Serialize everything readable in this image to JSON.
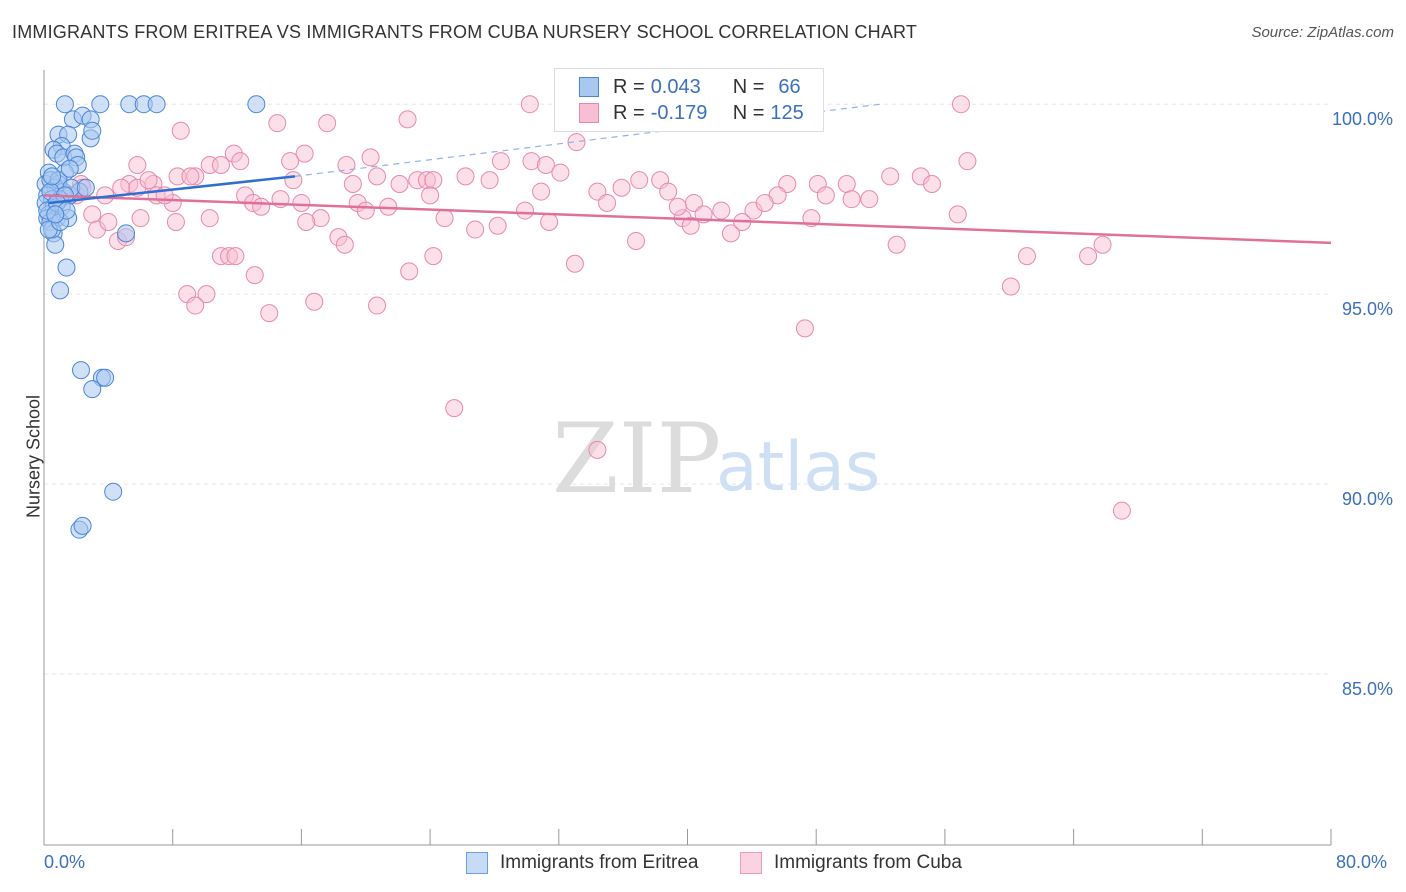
{
  "title": "IMMIGRANTS FROM ERITREA VS IMMIGRANTS FROM CUBA NURSERY SCHOOL CORRELATION CHART",
  "source": "Source: ZipAtlas.com",
  "watermark": {
    "zip": "ZIP",
    "atlas": "atlas"
  },
  "legend_top": {
    "eritrea": {
      "r_label": "R =",
      "r_value": "0.043",
      "n_label": "N =",
      "n_value": "66"
    },
    "cuba": {
      "r_label": "R =",
      "r_value": "-0.179",
      "n_label": "N =",
      "n_value": "125"
    }
  },
  "legend_bottom": {
    "eritrea": "Immigrants from Eritrea",
    "cuba": "Immigrants from Cuba"
  },
  "colors": {
    "eritrea_fill": "#a9c8f0",
    "eritrea_stroke": "#4a86d8",
    "eritrea_line": "#2f6fd0",
    "cuba_fill": "#f7bfd3",
    "cuba_stroke": "#e889ab",
    "cuba_line": "#e0709a",
    "tick_label": "#3a6fc4",
    "grid": "#e6e6e6"
  },
  "chart_data": {
    "type": "scatter",
    "title": "IMMIGRANTS FROM ERITREA VS IMMIGRANTS FROM CUBA NURSERY SCHOOL CORRELATION CHART",
    "xlabel": "",
    "ylabel": "Nursery School",
    "xlim": [
      0,
      80
    ],
    "ylim": [
      80.5,
      100.9
    ],
    "x_tick_labels": [
      "0.0%",
      "80.0%"
    ],
    "y_ticks": [
      85,
      90,
      95,
      100
    ],
    "y_tick_labels": [
      "85.0%",
      "90.0%",
      "95.0%",
      "100.0%"
    ],
    "grid": true,
    "legend_position": "top-center",
    "series": [
      {
        "name": "Immigrants from Eritrea",
        "r": 0.043,
        "n": 66,
        "trend": {
          "x": [
            0.3,
            15.6
          ],
          "y": [
            97.4,
            98.1
          ]
        },
        "trend_dashed": {
          "x": [
            15.6,
            52
          ],
          "y": [
            98.1,
            100.0
          ]
        },
        "points": [
          [
            1.3,
            100.0
          ],
          [
            3.5,
            100.0
          ],
          [
            5.3,
            100.0
          ],
          [
            6.2,
            100.0
          ],
          [
            7.0,
            100.0
          ],
          [
            13.2,
            100.0
          ],
          [
            1.8,
            99.6
          ],
          [
            2.4,
            99.7
          ],
          [
            2.9,
            99.6
          ],
          [
            0.9,
            99.2
          ],
          [
            1.5,
            99.2
          ],
          [
            2.9,
            99.1
          ],
          [
            3.0,
            99.3
          ],
          [
            1.1,
            98.9
          ],
          [
            0.6,
            98.8
          ],
          [
            0.8,
            98.7
          ],
          [
            1.2,
            98.6
          ],
          [
            1.9,
            98.7
          ],
          [
            2.0,
            98.6
          ],
          [
            2.1,
            98.4
          ],
          [
            1.3,
            98.2
          ],
          [
            0.3,
            98.2
          ],
          [
            0.1,
            97.9
          ],
          [
            0.4,
            98.0
          ],
          [
            0.9,
            97.9
          ],
          [
            0.7,
            97.8
          ],
          [
            1.2,
            97.7
          ],
          [
            1.6,
            97.6
          ],
          [
            2.2,
            97.7
          ],
          [
            0.2,
            97.6
          ],
          [
            0.5,
            97.5
          ],
          [
            1.0,
            97.5
          ],
          [
            0.1,
            97.4
          ],
          [
            0.6,
            97.3
          ],
          [
            1.1,
            97.3
          ],
          [
            0.3,
            97.1
          ],
          [
            0.2,
            97.0
          ],
          [
            0.8,
            97.0
          ],
          [
            1.5,
            97.0
          ],
          [
            0.4,
            96.9
          ],
          [
            0.6,
            96.6
          ],
          [
            0.7,
            96.3
          ],
          [
            5.1,
            96.6
          ],
          [
            0.5,
            96.7
          ],
          [
            1.4,
            95.7
          ],
          [
            1.0,
            95.1
          ],
          [
            2.3,
            93.0
          ],
          [
            3.6,
            92.8
          ],
          [
            3.8,
            92.8
          ],
          [
            3.0,
            92.5
          ],
          [
            4.3,
            89.8
          ],
          [
            2.2,
            88.8
          ],
          [
            2.4,
            88.9
          ],
          [
            0.9,
            98.0
          ],
          [
            1.7,
            97.8
          ],
          [
            0.4,
            97.7
          ],
          [
            1.3,
            97.6
          ],
          [
            0.2,
            97.2
          ],
          [
            0.8,
            97.4
          ],
          [
            1.6,
            98.3
          ],
          [
            0.5,
            98.1
          ],
          [
            2.6,
            97.8
          ],
          [
            0.3,
            96.7
          ],
          [
            1.0,
            96.9
          ],
          [
            1.4,
            97.2
          ],
          [
            0.7,
            97.1
          ]
        ]
      },
      {
        "name": "Immigrants from Cuba",
        "r": -0.179,
        "n": 125,
        "trend": {
          "x": [
            0.0,
            80.0
          ],
          "y": [
            97.6,
            96.35
          ]
        },
        "points": [
          [
            30.2,
            100.0
          ],
          [
            36.3,
            100.0
          ],
          [
            57.0,
            100.0
          ],
          [
            22.6,
            99.6
          ],
          [
            14.5,
            99.5
          ],
          [
            17.6,
            99.5
          ],
          [
            8.5,
            99.3
          ],
          [
            33.1,
            99.0
          ],
          [
            11.8,
            98.7
          ],
          [
            16.2,
            98.7
          ],
          [
            20.3,
            98.6
          ],
          [
            28.4,
            98.5
          ],
          [
            30.3,
            98.5
          ],
          [
            57.4,
            98.5
          ],
          [
            5.8,
            98.4
          ],
          [
            10.3,
            98.4
          ],
          [
            11.0,
            98.4
          ],
          [
            12.2,
            98.5
          ],
          [
            15.3,
            98.5
          ],
          [
            18.8,
            98.4
          ],
          [
            31.2,
            98.4
          ],
          [
            8.3,
            98.1
          ],
          [
            9.4,
            98.1
          ],
          [
            20.7,
            98.1
          ],
          [
            26.2,
            98.1
          ],
          [
            52.6,
            98.1
          ],
          [
            54.5,
            98.1
          ],
          [
            2.3,
            97.9
          ],
          [
            5.3,
            97.9
          ],
          [
            6.8,
            97.9
          ],
          [
            15.5,
            98.0
          ],
          [
            19.2,
            97.9
          ],
          [
            23.2,
            98.0
          ],
          [
            23.8,
            98.0
          ],
          [
            24.2,
            98.0
          ],
          [
            38.3,
            98.0
          ],
          [
            46.2,
            97.9
          ],
          [
            48.1,
            97.9
          ],
          [
            49.9,
            97.9
          ],
          [
            3.8,
            97.6
          ],
          [
            4.8,
            97.8
          ],
          [
            5.8,
            97.8
          ],
          [
            7.0,
            97.6
          ],
          [
            12.5,
            97.6
          ],
          [
            1.2,
            97.7
          ],
          [
            2.0,
            97.6
          ],
          [
            22.1,
            97.9
          ],
          [
            24.0,
            97.6
          ],
          [
            30.9,
            97.7
          ],
          [
            34.4,
            97.7
          ],
          [
            35.0,
            97.4
          ],
          [
            38.8,
            97.7
          ],
          [
            40.4,
            97.4
          ],
          [
            45.6,
            97.6
          ],
          [
            3.0,
            97.1
          ],
          [
            8.0,
            97.4
          ],
          [
            13.0,
            97.4
          ],
          [
            13.5,
            97.3
          ],
          [
            16.0,
            97.4
          ],
          [
            19.5,
            97.4
          ],
          [
            21.4,
            97.3
          ],
          [
            29.9,
            97.2
          ],
          [
            39.7,
            97.0
          ],
          [
            42.1,
            97.2
          ],
          [
            44.1,
            97.2
          ],
          [
            50.2,
            97.5
          ],
          [
            7.5,
            97.6
          ],
          [
            17.2,
            97.0
          ],
          [
            20.0,
            97.2
          ],
          [
            24.9,
            97.0
          ],
          [
            28.2,
            96.8
          ],
          [
            31.4,
            96.9
          ],
          [
            40.2,
            96.8
          ],
          [
            47.7,
            97.0
          ],
          [
            56.8,
            97.1
          ],
          [
            6.0,
            97.0
          ],
          [
            3.3,
            96.7
          ],
          [
            4.0,
            96.9
          ],
          [
            8.2,
            96.9
          ],
          [
            10.3,
            97.0
          ],
          [
            16.3,
            96.9
          ],
          [
            18.3,
            96.5
          ],
          [
            26.8,
            96.7
          ],
          [
            36.8,
            96.4
          ],
          [
            42.7,
            96.6
          ],
          [
            43.4,
            96.9
          ],
          [
            4.6,
            96.4
          ],
          [
            5.1,
            96.5
          ],
          [
            11.0,
            96.0
          ],
          [
            11.5,
            96.0
          ],
          [
            11.9,
            96.0
          ],
          [
            18.7,
            96.3
          ],
          [
            24.2,
            96.0
          ],
          [
            33.0,
            95.8
          ],
          [
            53.0,
            96.3
          ],
          [
            61.1,
            96.0
          ],
          [
            64.9,
            96.0
          ],
          [
            65.8,
            96.3
          ],
          [
            13.1,
            95.5
          ],
          [
            22.7,
            95.6
          ],
          [
            8.9,
            95.0
          ],
          [
            10.1,
            95.0
          ],
          [
            9.4,
            94.7
          ],
          [
            14.0,
            94.5
          ],
          [
            16.8,
            94.8
          ],
          [
            20.7,
            94.7
          ],
          [
            60.1,
            95.2
          ],
          [
            47.3,
            94.1
          ],
          [
            25.5,
            92.0
          ],
          [
            34.4,
            90.9
          ],
          [
            67.0,
            89.3
          ],
          [
            2.4,
            97.8
          ],
          [
            6.5,
            98.0
          ],
          [
            9.1,
            98.1
          ],
          [
            14.7,
            97.5
          ],
          [
            27.7,
            98.0
          ],
          [
            32.1,
            98.2
          ],
          [
            37.0,
            98.0
          ],
          [
            39.4,
            97.3
          ],
          [
            41.0,
            97.1
          ],
          [
            48.6,
            97.6
          ],
          [
            51.3,
            97.5
          ],
          [
            55.2,
            97.9
          ],
          [
            44.8,
            97.4
          ],
          [
            35.9,
            97.8
          ]
        ]
      }
    ]
  }
}
